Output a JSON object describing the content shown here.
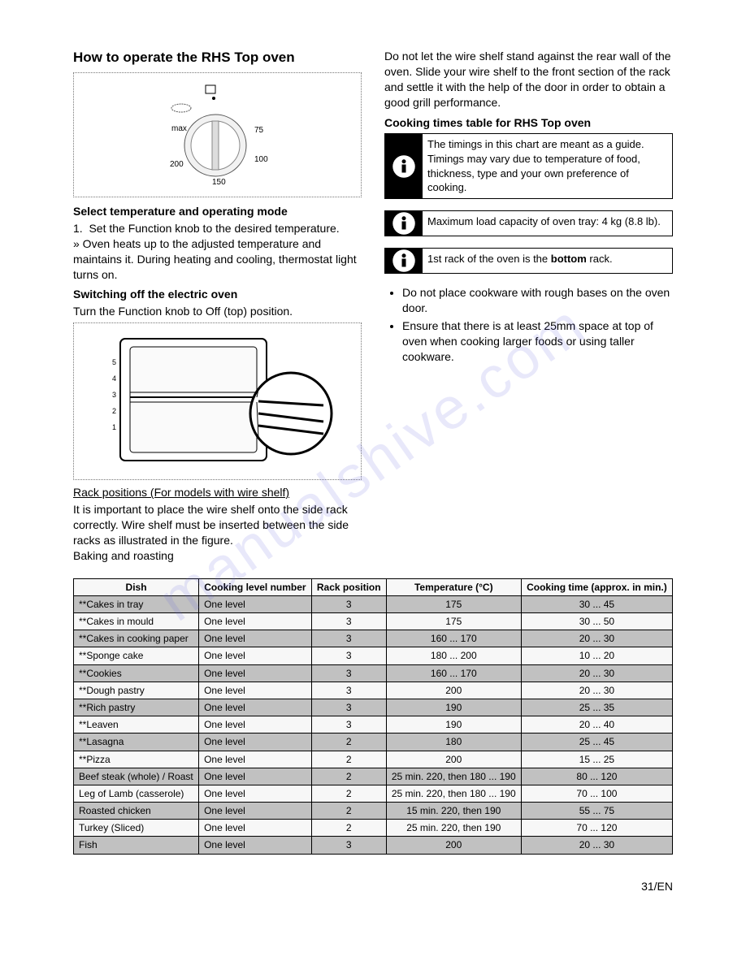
{
  "watermark": "manualshive.com",
  "page_number": "31/EN",
  "left": {
    "title": "How to operate the RHS Top oven",
    "select_heading": "Select temperature and operating mode",
    "select_step": "Set the Function knob to the desired temperature.",
    "select_note": "» Oven heats up to the adjusted temperature and maintains it. During heating and cooling, thermostat light turns on.",
    "switch_heading": "Switching off the electric oven",
    "switch_text": "Turn the Function knob to Off (top) position.",
    "rack_heading": "Rack positions (For models with wire shelf)",
    "rack_text": "It is important to place the wire shelf onto the side rack correctly. Wire shelf must be inserted between the side racks as illustrated in the figure.",
    "baking": "Baking and roasting",
    "knob": {
      "max": "max",
      "v75": "75",
      "v100": "100",
      "v150": "150",
      "v200": "200"
    }
  },
  "right": {
    "intro": "Do not let the wire shelf stand against the rear wall of the oven. Slide your wire shelf to the front section of the rack and settle it with the help of the door in order to obtain a good grill performance.",
    "times_heading": "Cooking times table for RHS Top oven",
    "info1": "The timings in this chart are meant as a guide. Timings may vary due to temperature of food, thickness, type and your own preference of cooking.",
    "info2": "Maximum load capacity of oven tray: 4 kg (8.8 lb).",
    "info3_pre": "1st rack of the oven is the ",
    "info3_bold": "bottom",
    "info3_post": " rack.",
    "bullet1": "Do not place cookware with rough bases on the oven door.",
    "bullet2": "Ensure that there is at least 25mm space at top of oven when cooking larger foods or using taller cookware."
  },
  "table": {
    "headers": [
      "Dish",
      "Cooking level number",
      "Rack position",
      "Temperature (°C)",
      "Cooking time (approx. in min.)"
    ],
    "rows": [
      {
        "shaded": true,
        "c": [
          "**Cakes in tray",
          "One level",
          "3",
          "175",
          "30 ... 45"
        ]
      },
      {
        "shaded": false,
        "c": [
          "**Cakes in mould",
          "One level",
          "3",
          "175",
          "30 ... 50"
        ]
      },
      {
        "shaded": true,
        "c": [
          "**Cakes in cooking paper",
          "One level",
          "3",
          "160 ... 170",
          "20 ... 30"
        ]
      },
      {
        "shaded": false,
        "c": [
          "**Sponge cake",
          "One level",
          "3",
          "180 ... 200",
          "10 ... 20"
        ]
      },
      {
        "shaded": true,
        "c": [
          "**Cookies",
          "One level",
          "3",
          "160 ... 170",
          "20 ... 30"
        ]
      },
      {
        "shaded": false,
        "c": [
          "**Dough pastry",
          "One level",
          "3",
          "200",
          "20 ... 30"
        ]
      },
      {
        "shaded": true,
        "c": [
          "**Rich pastry",
          "One level",
          "3",
          "190",
          "25 ... 35"
        ]
      },
      {
        "shaded": false,
        "c": [
          "**Leaven",
          "One level",
          "3",
          "190",
          "20 ... 40"
        ]
      },
      {
        "shaded": true,
        "c": [
          "**Lasagna",
          "One level",
          "2",
          "180",
          "25 ... 45"
        ]
      },
      {
        "shaded": false,
        "c": [
          "**Pizza",
          "One level",
          "2",
          "200",
          "15 ... 25"
        ]
      },
      {
        "shaded": true,
        "c": [
          "Beef steak (whole) / Roast",
          "One level",
          "2",
          "25 min. 220, then 180 ... 190",
          "80 ... 120"
        ]
      },
      {
        "shaded": false,
        "c": [
          "Leg of Lamb (casserole)",
          "One level",
          "2",
          "25 min. 220, then 180 ... 190",
          "70 ... 100"
        ]
      },
      {
        "shaded": true,
        "c": [
          "Roasted chicken",
          "One level",
          "2",
          "15 min. 220, then 190",
          "55 ... 75"
        ]
      },
      {
        "shaded": false,
        "c": [
          "Turkey (Sliced)",
          "One level",
          "2",
          "25 min. 220, then 190",
          "70 ... 120"
        ]
      },
      {
        "shaded": true,
        "c": [
          "Fish",
          "One level",
          "3",
          "200",
          "20 ... 30"
        ]
      }
    ]
  }
}
